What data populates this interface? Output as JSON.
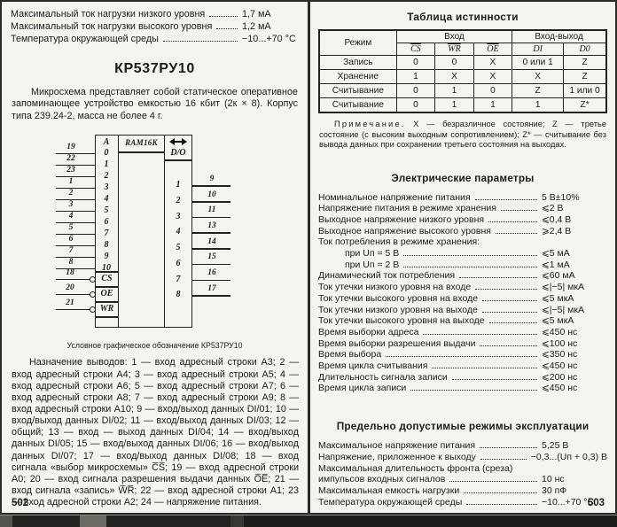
{
  "theme": {
    "paper": "#f6f4ee",
    "ink": "#1c1c1c",
    "line": "#222222",
    "scan_bar": "#242220"
  },
  "left": {
    "page_number": "502",
    "top_specs": [
      {
        "label": "Максимальный ток нагрузки низкого уровня",
        "value": "1,7 мА"
      },
      {
        "label": "Максимальный ток нагрузки высокого уровня",
        "value": "1,2 мА"
      },
      {
        "label": "Температура окружающей среды",
        "value": "−10...+70 °C"
      }
    ],
    "title": "КР537РУ10",
    "description": "Микросхема представляет собой статическое оперативное запоминающее устройство емкостью 16 кбит (2к × 8). Корпус типа 239.24-2, масса не более 4 г.",
    "diagram": {
      "left_header": "A",
      "chip_label": "RAM16K",
      "io_header": "D/O",
      "address_rows": [
        {
          "pin": "19",
          "label": "0"
        },
        {
          "pin": "22",
          "label": "1"
        },
        {
          "pin": "23",
          "label": "2"
        },
        {
          "pin": "1",
          "label": "3"
        },
        {
          "pin": "2",
          "label": "4"
        },
        {
          "pin": "3",
          "label": "5"
        },
        {
          "pin": "4",
          "label": "6"
        },
        {
          "pin": "5",
          "label": "7"
        },
        {
          "pin": "6",
          "label": "8"
        },
        {
          "pin": "7",
          "label": "9"
        },
        {
          "pin": "8",
          "label": "10"
        }
      ],
      "control_rows": [
        {
          "pin": "18",
          "label": "CS"
        },
        {
          "pin": "20",
          "label": "OE"
        },
        {
          "pin": "21",
          "label": "WR"
        }
      ],
      "io_rows": [
        {
          "label": "1",
          "pin": "9"
        },
        {
          "label": "2",
          "pin": "10"
        },
        {
          "label": "3",
          "pin": "11"
        },
        {
          "label": "4",
          "pin": "13"
        },
        {
          "label": "5",
          "pin": "14"
        },
        {
          "label": "6",
          "pin": "15"
        },
        {
          "label": "7",
          "pin": "16"
        },
        {
          "label": "8",
          "pin": "17"
        }
      ],
      "caption": "Условное графическое обозначение КР537РУ10"
    },
    "pin_description": "Назначение выводов: 1 — вход адресный строки А3; 2 — вход адресный строки А4; 3 — вход адресный строки А5; 4 — вход адресный строки А6; 5 — вход адресный строки А7; 6 — вход адресный строки А8; 7 — вход адресный строки А9; 8 — вход адресный строки А10; 9 — вход/выход данных DI/01; 10 — вход/выход данных DI/02; 11 — вход/выход данных DI/03; 12 — общий; 13 — вход — выход данных DI/04; 14 — вход/выход данных DI/05; 15 — вход/выход данных DI/06; 16 — вход/выход данных DI/07; 17 — вход/выход данных DI/08; 18 — вход сигнала «выбор микросхемы» C̅S̅; 19 — вход адресной строки А0; 20 — вход сигнала разрешения выдачи данных O̅E̅; 21 — вход сигнала «запись» W̅R̅; 22 — вход адресной строки А1; 23 — вход адресной строки А2; 24 — напряжение питания."
  },
  "right": {
    "page_number": "503",
    "truth_table": {
      "title": "Таблица истинности",
      "col_mode": "Режим",
      "group_input": "Вход",
      "group_io": "Вход-выход",
      "signals": [
        "CS",
        "WR",
        "OE"
      ],
      "io_cols": [
        "DI",
        "D0"
      ],
      "rows": [
        [
          "Запись",
          "0",
          "0",
          "X",
          "0 или 1",
          "Z"
        ],
        [
          "Хранение",
          "1",
          "X",
          "X",
          "X",
          "Z"
        ],
        [
          "Считывание",
          "0",
          "1",
          "0",
          "Z",
          "1 или 0"
        ],
        [
          "Считывание",
          "0",
          "1",
          "1",
          "1",
          "Z*"
        ]
      ]
    },
    "note_label": "Примечание.",
    "note_text": "X — безразличное состояние; Z — третье состояние (с высоким выходным сопротивлением); Z* — считывание без вывода данных при сохранении третьего состояния на выходах.",
    "electrical": {
      "title": "Электрические параметры",
      "items": [
        {
          "label": "Номинальное напряжение питания",
          "value": "5 В±10%"
        },
        {
          "label": "Напряжение питания в режиме хранения",
          "value": "⩽2 В"
        },
        {
          "label": "Выходное напряжение низкого уровня",
          "value": "⩽0,4 В"
        },
        {
          "label": "Выходное напряжение высокого уровня",
          "value": "⩾2,4 В"
        },
        {
          "label": "Ток потребления в режиме хранения:",
          "value": ""
        },
        {
          "label": "при Uп = 5 В",
          "value": "⩽5 мА",
          "indent": true
        },
        {
          "label": "при Uп = 2 В",
          "value": "⩽1 мА",
          "indent": true
        },
        {
          "label": "Динамический ток потребления",
          "value": "⩽60 мА"
        },
        {
          "label": "Ток утечки низкого уровня на входе",
          "value": "⩽|−5| мкА"
        },
        {
          "label": "Ток утечки высокого уровня на входе",
          "value": "⩽5 мкА"
        },
        {
          "label": "Ток утечки низкого уровня на выходе",
          "value": "⩽|−5| мкА"
        },
        {
          "label": "Ток утечки высокого уровня на выходе",
          "value": "⩽5 мкА"
        },
        {
          "label": "Время выборки адреса",
          "value": "⩽450 нс"
        },
        {
          "label": "Время выборки разрешения выдачи",
          "value": "⩽100 нс"
        },
        {
          "label": "Время выбора",
          "value": "⩽350 нс"
        },
        {
          "label": "Время цикла считывания",
          "value": "⩽450 нс"
        },
        {
          "label": "Длительность сигнала записи",
          "value": "⩽200 нс"
        },
        {
          "label": "Время цикла записи",
          "value": "⩽450 нс"
        }
      ]
    },
    "limits": {
      "title": "Предельно допустимые режимы эксплуатации",
      "items": [
        {
          "label": "Максимальное напряжение питания",
          "value": "5,25 В"
        },
        {
          "label": "Напряжение, приложенное к выходу",
          "value": "−0,3...(Uп + 0,3) В"
        },
        {
          "label": "Максимальная длительность фронта (среза)",
          "value": ""
        },
        {
          "label": "импульсов входных сигналов",
          "value": "10 нс"
        },
        {
          "label": "Максимальная емкость нагрузки",
          "value": "30 пФ"
        },
        {
          "label": "Температура окружающей среды",
          "value": "−10...+70 °C"
        }
      ]
    }
  }
}
